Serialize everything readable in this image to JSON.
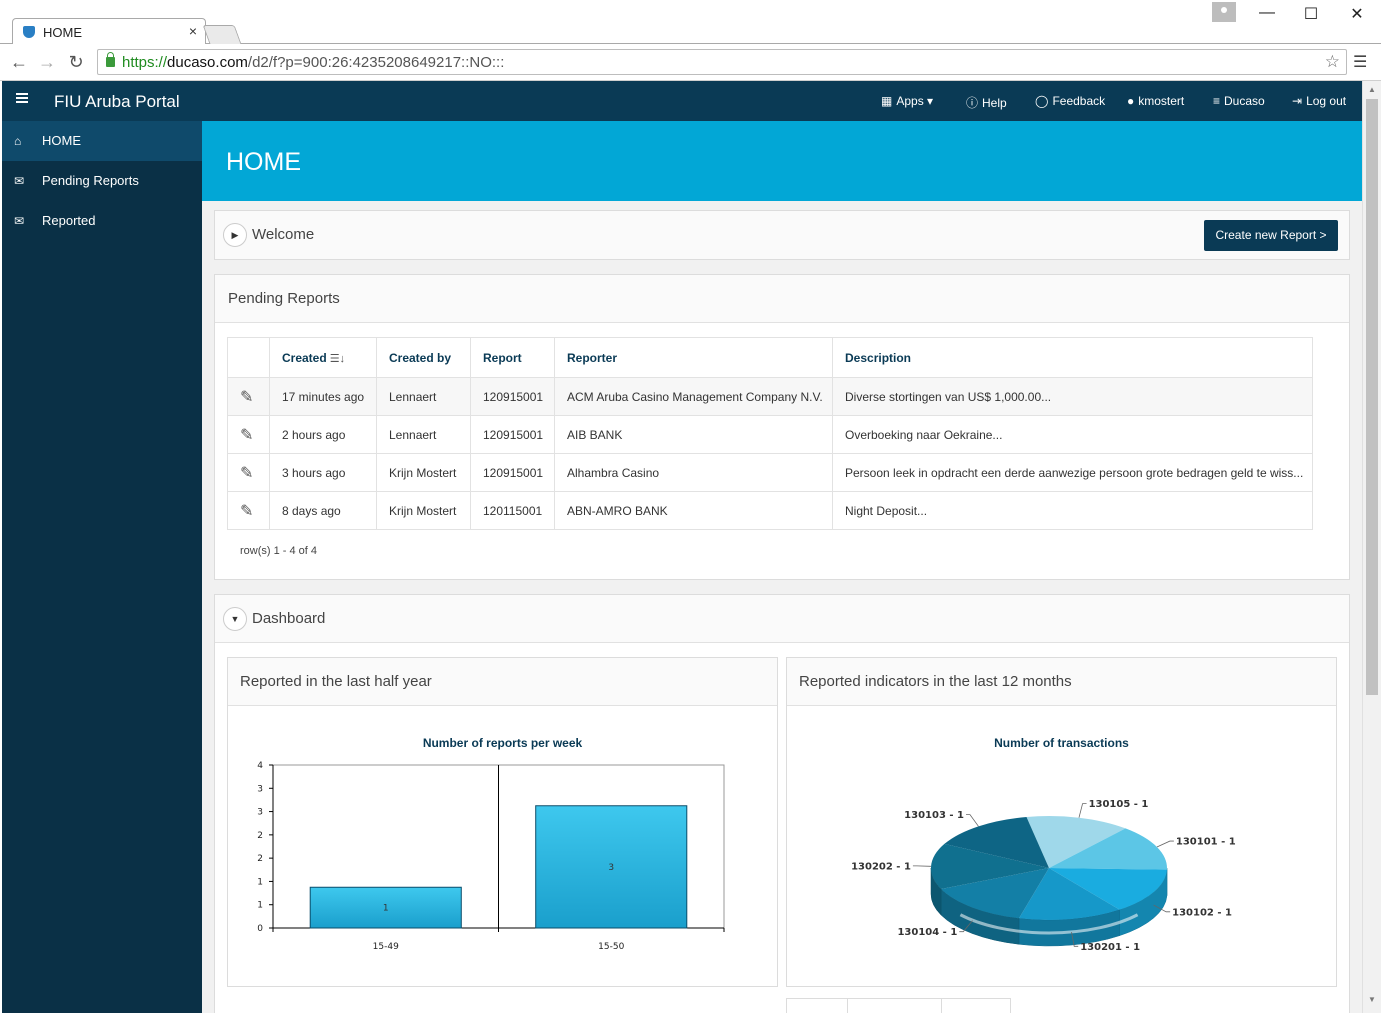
{
  "browser": {
    "tab_title": "HOME",
    "tab_close": "×",
    "url_scheme": "https://",
    "url_host": "ducaso.com",
    "url_path": "/d2/f?p=900:26:4235208649217::NO:::",
    "window_minimize": "—",
    "window_maximize": "☐",
    "window_close": "✕"
  },
  "header": {
    "app_title": "FIU Aruba Portal",
    "nav": [
      {
        "label": "Apps",
        "icon": "grid-icon"
      },
      {
        "label": "Help",
        "icon": "help-icon"
      },
      {
        "label": "Feedback",
        "icon": "comment-icon"
      },
      {
        "label": "kmostert",
        "icon": "user-icon"
      },
      {
        "label": "Ducaso",
        "icon": "database-icon"
      },
      {
        "label": "Log out",
        "icon": "logout-icon"
      }
    ]
  },
  "sidebar": {
    "items": [
      {
        "label": "HOME",
        "icon": "home-icon",
        "active": true
      },
      {
        "label": "Pending Reports",
        "icon": "envelope-open-icon"
      },
      {
        "label": "Reported",
        "icon": "envelope-icon"
      }
    ]
  },
  "page": {
    "title": "HOME"
  },
  "welcome": {
    "title": "Welcome",
    "create_button": "Create new Report >"
  },
  "pending": {
    "title": "Pending Reports",
    "columns": [
      "Created",
      "Created by",
      "Report",
      "Reporter",
      "Description"
    ],
    "rows": [
      {
        "created": "17 minutes ago",
        "created_by": "Lennaert",
        "report": "120915001",
        "reporter": "ACM Aruba Casino Management Company N.V.",
        "description": "Diverse stortingen van US$ 1,000.00..."
      },
      {
        "created": "2 hours ago",
        "created_by": "Lennaert",
        "report": "120915001",
        "reporter": "AIB BANK",
        "description": "Overboeking naar Oekraine..."
      },
      {
        "created": "3 hours ago",
        "created_by": "Krijn Mostert",
        "report": "120915001",
        "reporter": "Alhambra Casino",
        "description": "Persoon leek in opdracht een derde aanwezige persoon grote bedragen geld te wiss..."
      },
      {
        "created": "8 days ago",
        "created_by": "Krijn Mostert",
        "report": "120115001",
        "reporter": "ABN-AMRO BANK",
        "description": "Night Deposit..."
      }
    ],
    "rowcount": "row(s) 1 - 4 of 4"
  },
  "dashboard": {
    "title": "Dashboard",
    "bar_panel_title": "Reported in the last half year",
    "pie_panel_title": "Reported indicators in the last 12 months"
  },
  "chart_data": [
    {
      "type": "bar",
      "title": "Number of reports per week",
      "categories": [
        "15-49",
        "15-50"
      ],
      "values": [
        1,
        3
      ],
      "ylim": [
        0,
        4
      ],
      "ytick_labels": [
        "0",
        "1",
        "1",
        "2",
        "2",
        "3",
        "3",
        "4"
      ],
      "color": "#2bb8e2",
      "grid": false
    },
    {
      "type": "pie",
      "title": "Number of transactions",
      "labels": [
        "130105 - 1",
        "130101 - 1",
        "130102 - 1",
        "130201 - 1",
        "130104 - 1",
        "130202 - 1",
        "130103 - 1"
      ],
      "values": [
        1,
        1,
        1,
        1,
        1,
        1,
        1
      ],
      "colors": [
        "#9fd8ea",
        "#5cc6e6",
        "#1aace0",
        "#1698c9",
        "#137fa6",
        "#10708f",
        "#0e6585"
      ]
    }
  ]
}
